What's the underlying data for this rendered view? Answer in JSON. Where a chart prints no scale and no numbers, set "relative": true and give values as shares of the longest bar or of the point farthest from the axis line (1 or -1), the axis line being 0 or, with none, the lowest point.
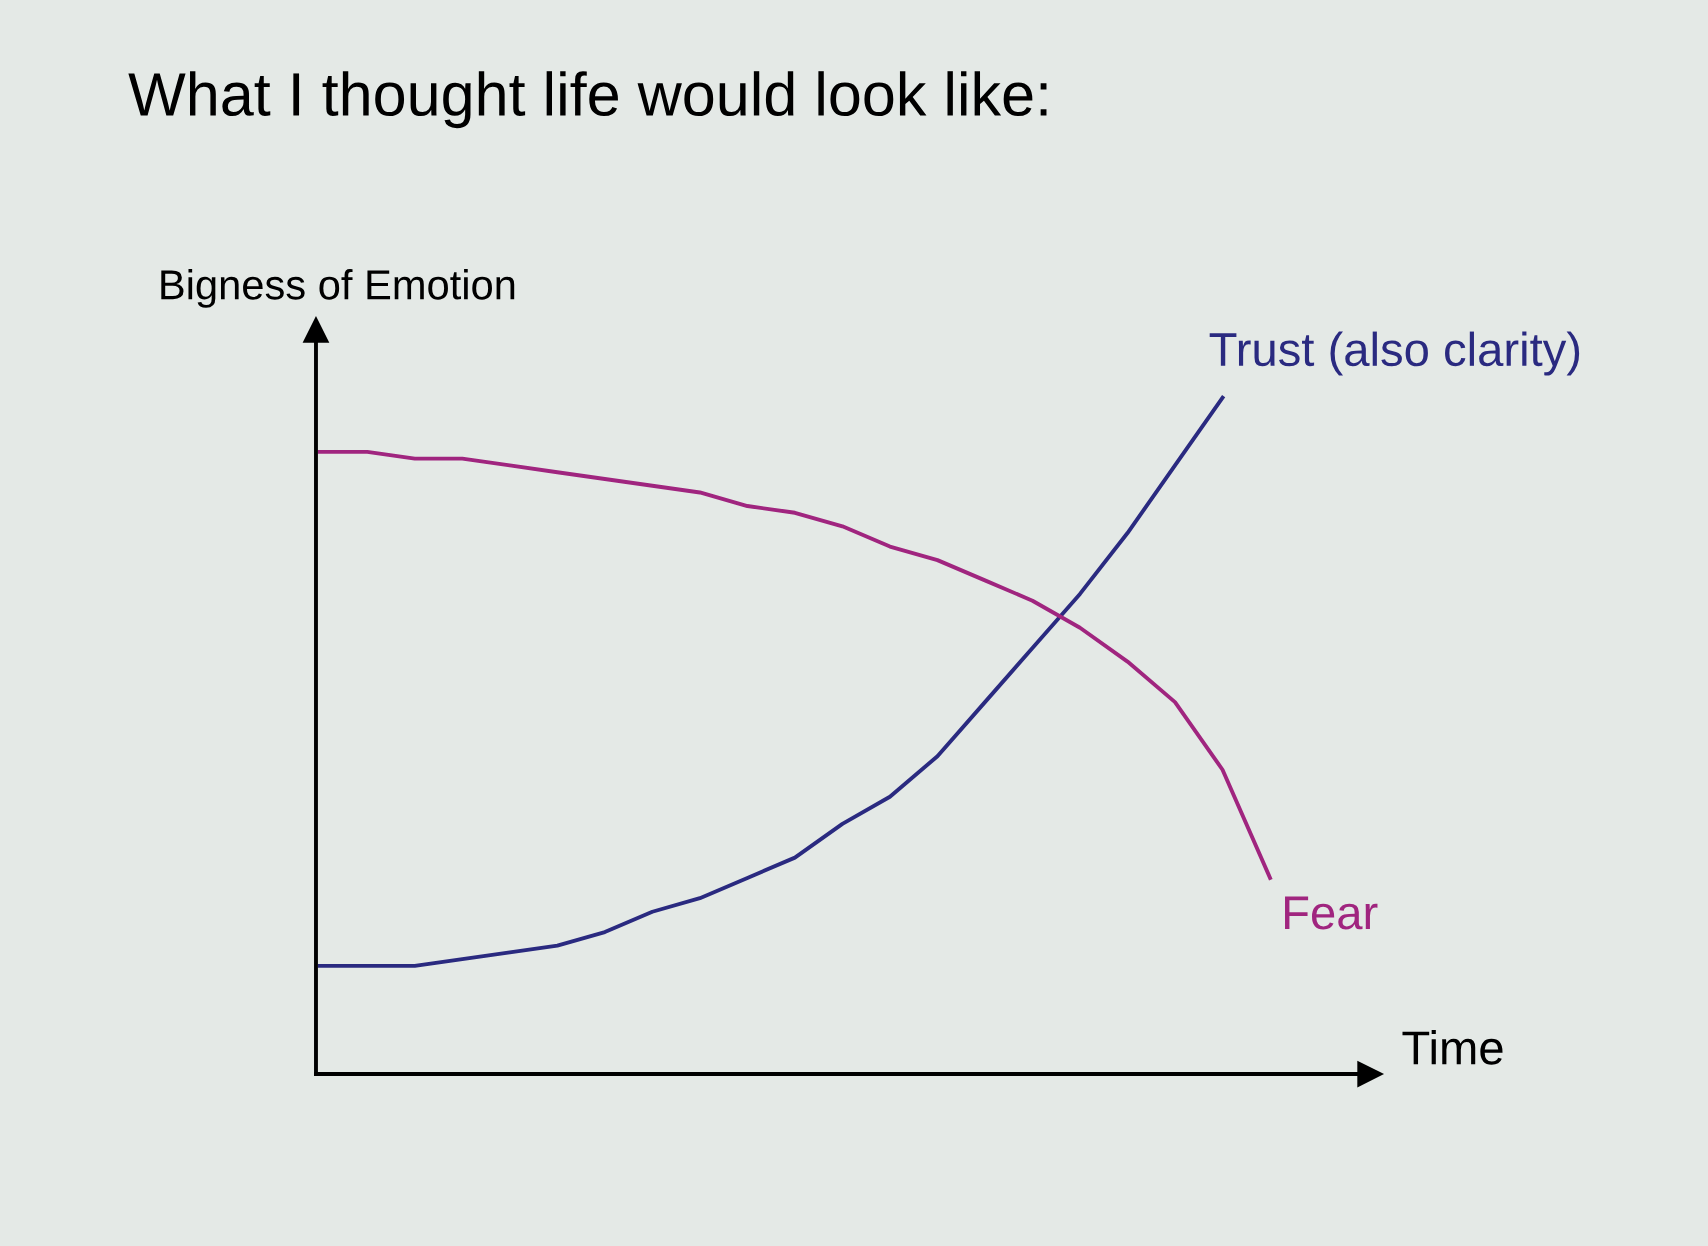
{
  "chart_data": {
    "type": "line",
    "title": "What I thought life would look like:",
    "xlabel": "Time",
    "ylabel": "Bigness of Emotion",
    "relative": true,
    "tick_labels": false,
    "legend": false,
    "marker": "none",
    "line_style": "solid",
    "categories": [
      null,
      null,
      null,
      null,
      null,
      null,
      null,
      null,
      null,
      null,
      null,
      null,
      null,
      null,
      null,
      null,
      null,
      null,
      null,
      null,
      null
    ],
    "series": [
      {
        "name": "Trust (also clarity)",
        "color": "#2a2a80",
        "values": [
          0.16,
          0.16,
          0.16,
          0.17,
          0.18,
          0.19,
          0.21,
          0.24,
          0.26,
          0.29,
          0.32,
          0.37,
          0.41,
          0.47,
          0.55,
          0.63,
          0.71,
          0.8,
          0.9,
          1.0,
          null
        ]
      },
      {
        "name": "Fear",
        "color": "#a0257f",
        "values": [
          0.92,
          0.92,
          0.91,
          0.91,
          0.9,
          0.89,
          0.88,
          0.87,
          0.86,
          0.84,
          0.83,
          0.81,
          0.78,
          0.76,
          0.73,
          0.7,
          0.66,
          0.61,
          0.55,
          0.45,
          0.29
        ]
      }
    ]
  }
}
